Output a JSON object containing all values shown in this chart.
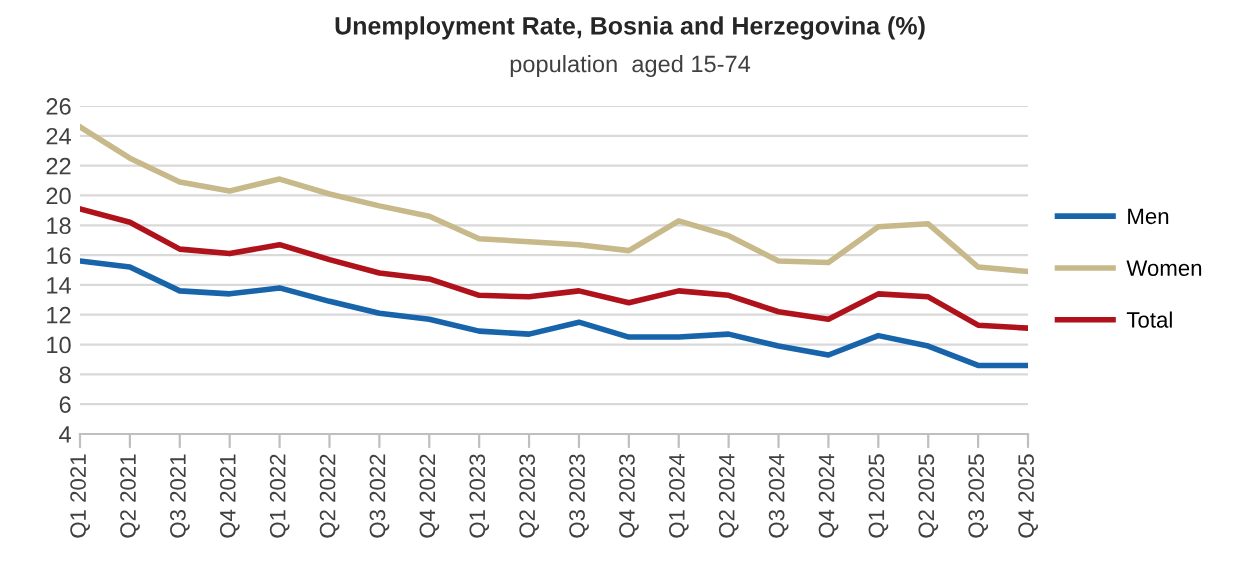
{
  "chart_data": {
    "type": "line",
    "title": "Unemployment Rate, Bosnia and Herzegovina (%)",
    "subtitle": "population  aged 15-74",
    "categories": [
      "Q1 2021",
      "Q2 2021",
      "Q3 2021",
      "Q4 2021",
      "Q1 2022",
      "Q2 2022",
      "Q3 2022",
      "Q4 2022",
      "Q1 2023",
      "Q2 2023",
      "Q3 2023",
      "Q4 2023",
      "Q1 2024",
      "Q2 2024",
      "Q3 2024",
      "Q4 2024",
      "Q1 2025",
      "Q2 2025",
      "Q3 2025",
      "Q4 2025"
    ],
    "series": [
      {
        "name": "Men",
        "color": "#1764ab",
        "values": [
          15.6,
          15.2,
          13.6,
          13.4,
          13.8,
          12.9,
          12.1,
          11.7,
          10.9,
          10.7,
          11.5,
          10.5,
          10.5,
          10.7,
          9.9,
          9.3,
          10.6,
          9.9,
          8.6,
          8.6
        ]
      },
      {
        "name": "Women",
        "color": "#c8b98a",
        "values": [
          24.6,
          22.5,
          20.9,
          20.3,
          21.1,
          20.1,
          19.3,
          18.6,
          17.1,
          16.9,
          16.7,
          16.3,
          18.3,
          17.3,
          15.6,
          15.5,
          17.9,
          18.1,
          15.2,
          14.9
        ]
      },
      {
        "name": "Total",
        "color": "#b0121b",
        "values": [
          19.1,
          18.2,
          16.4,
          16.1,
          16.7,
          15.7,
          14.8,
          14.4,
          13.3,
          13.2,
          13.6,
          12.8,
          13.6,
          13.3,
          12.2,
          11.7,
          13.4,
          13.2,
          11.3,
          11.1
        ]
      }
    ],
    "ylim": [
      4,
      26
    ],
    "yticks": [
      4,
      6,
      8,
      10,
      12,
      14,
      16,
      18,
      20,
      22,
      24,
      26
    ],
    "grid": "y",
    "legend": "right",
    "marker": "none",
    "line_style": "solid"
  }
}
